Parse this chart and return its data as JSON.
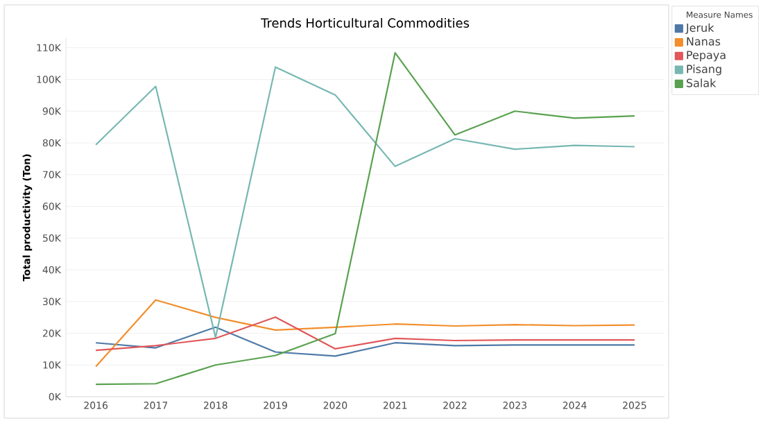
{
  "chart_data": {
    "type": "line",
    "title": "Trends Horticultural Commodities",
    "ylabel": "Total productivity (Ton)",
    "legend_title": "Measure Names",
    "legend": "right",
    "grid": "y",
    "categories": [
      "2016",
      "2017",
      "2018",
      "2019",
      "2020",
      "2021",
      "2022",
      "2023",
      "2024",
      "2025"
    ],
    "ylim": [
      0,
      113000
    ],
    "yticks": [
      {
        "value": 0,
        "label": "0K"
      },
      {
        "value": 10000,
        "label": "10K"
      },
      {
        "value": 20000,
        "label": "20K"
      },
      {
        "value": 30000,
        "label": "30K"
      },
      {
        "value": 40000,
        "label": "40K"
      },
      {
        "value": 50000,
        "label": "50K"
      },
      {
        "value": 60000,
        "label": "60K"
      },
      {
        "value": 70000,
        "label": "70K"
      },
      {
        "value": 80000,
        "label": "80K"
      },
      {
        "value": 90000,
        "label": "90K"
      },
      {
        "value": 100000,
        "label": "100K"
      },
      {
        "value": 110000,
        "label": "110K"
      }
    ],
    "series": [
      {
        "name": "Jeruk",
        "color": "#4e79a7",
        "values": [
          17000,
          15400,
          21900,
          14100,
          12800,
          17000,
          16100,
          16300,
          16300,
          16300
        ]
      },
      {
        "name": "Nanas",
        "color": "#f28e2b",
        "values": [
          9500,
          30500,
          25000,
          21000,
          21900,
          22900,
          22300,
          22700,
          22400,
          22600
        ]
      },
      {
        "name": "Pepaya",
        "color": "#e15759",
        "values": [
          14600,
          16100,
          18400,
          25100,
          15100,
          18400,
          17700,
          17900,
          17900,
          17900
        ]
      },
      {
        "name": "Pisang",
        "color": "#76b7b2",
        "values": [
          79400,
          97800,
          18700,
          103900,
          95100,
          72600,
          81300,
          78000,
          79200,
          78800
        ]
      },
      {
        "name": "Salak",
        "color": "#59a14f",
        "values": [
          3900,
          4100,
          10000,
          13000,
          19900,
          108400,
          82500,
          90000,
          87800,
          88500
        ]
      }
    ]
  }
}
